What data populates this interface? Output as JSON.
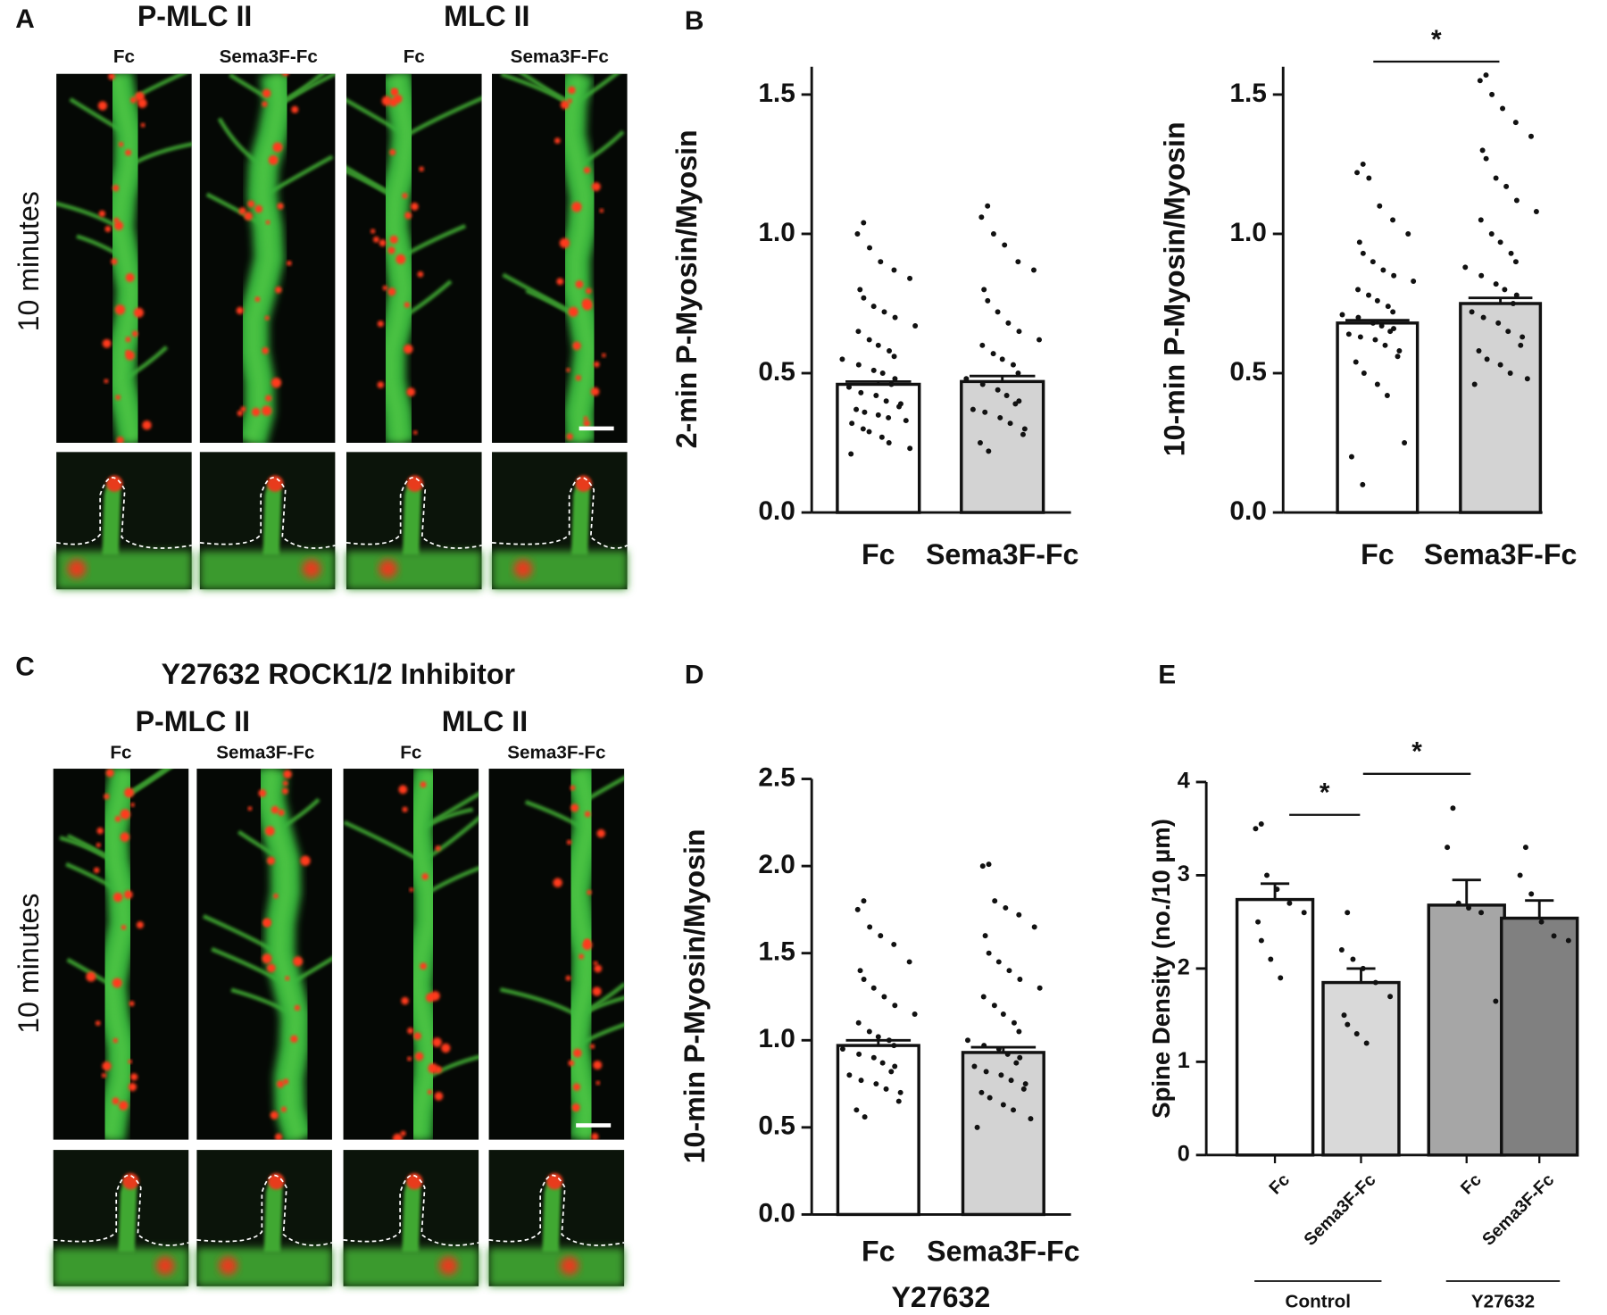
{
  "panel_labels": [
    "A",
    "B",
    "C",
    "D",
    "E"
  ],
  "micrographs": [
    {
      "channels": [
        "P-MLC II",
        "MLC II"
      ],
      "conditions": [
        "Fc",
        "Sema3F-Fc",
        "Fc",
        "Sema3F-Fc"
      ],
      "row_label": "10 minutes"
    },
    {
      "title": "Y27632 ROCK1/2 Inhibitor",
      "channels": [
        "P-MLC II",
        "MLC II"
      ],
      "conditions": [
        "Fc",
        "Sema3F-Fc",
        "Fc",
        "Sema3F-Fc"
      ],
      "row_label": "10 minutes"
    }
  ],
  "chart_data": [
    {
      "type": "bar",
      "ylabel": "2-min P-Myosin/Myosin",
      "categories": [
        "Fc",
        "Sema3F-Fc"
      ],
      "values": [
        0.46,
        0.47
      ],
      "errors": [
        0.01,
        0.02
      ],
      "colors": [
        "#ffffff",
        "#d3d3d3"
      ],
      "points": [
        [
          1.04,
          1.0,
          0.95,
          0.9,
          0.87,
          0.84,
          0.8,
          0.77,
          0.74,
          0.72,
          0.7,
          0.67,
          0.65,
          0.62,
          0.6,
          0.58,
          0.56,
          0.55,
          0.53,
          0.51,
          0.5,
          0.48,
          0.46,
          0.45,
          0.43,
          0.42,
          0.4,
          0.39,
          0.38,
          0.37,
          0.36,
          0.35,
          0.34,
          0.33,
          0.32,
          0.3,
          0.29,
          0.27,
          0.25,
          0.23,
          0.21
        ],
        [
          1.1,
          1.06,
          1.0,
          0.96,
          0.9,
          0.87,
          0.8,
          0.76,
          0.72,
          0.68,
          0.65,
          0.62,
          0.6,
          0.57,
          0.55,
          0.53,
          0.5,
          0.48,
          0.46,
          0.44,
          0.42,
          0.4,
          0.39,
          0.37,
          0.36,
          0.34,
          0.32,
          0.3,
          0.28,
          0.25,
          0.22
        ]
      ],
      "ylim": [
        0,
        1.6
      ],
      "yticks": [
        {
          "value": 0,
          "label": "0.0"
        },
        0.5,
        {
          "value": 1,
          "label": "1.0"
        },
        1.5
      ]
    },
    {
      "type": "bar",
      "ylabel": "10-min P-Myosin/Myosin",
      "categories": [
        "Fc",
        "Sema3F-Fc"
      ],
      "values": [
        0.68,
        0.75
      ],
      "errors": [
        0.01,
        0.02
      ],
      "colors": [
        "#ffffff",
        "#d3d3d3"
      ],
      "points": [
        [
          1.25,
          1.22,
          1.2,
          1.1,
          1.05,
          1.0,
          0.97,
          0.93,
          0.9,
          0.87,
          0.85,
          0.83,
          0.8,
          0.78,
          0.76,
          0.74,
          0.72,
          0.71,
          0.7,
          0.68,
          0.67,
          0.66,
          0.65,
          0.64,
          0.63,
          0.62,
          0.6,
          0.58,
          0.56,
          0.54,
          0.5,
          0.46,
          0.42,
          0.25,
          0.2,
          0.1
        ],
        [
          1.57,
          1.55,
          1.5,
          1.45,
          1.4,
          1.35,
          1.3,
          1.27,
          1.2,
          1.17,
          1.12,
          1.08,
          1.05,
          1.0,
          0.97,
          0.93,
          0.9,
          0.88,
          0.85,
          0.82,
          0.8,
          0.78,
          0.75,
          0.72,
          0.7,
          0.68,
          0.65,
          0.63,
          0.6,
          0.58,
          0.55,
          0.53,
          0.5,
          0.48,
          0.46
        ]
      ],
      "annotations": [
        "*"
      ],
      "ylim": [
        0,
        1.6
      ],
      "yticks": [
        {
          "value": 0,
          "label": "0.0"
        },
        0.5,
        {
          "value": 1,
          "label": "1.0"
        },
        1.5
      ]
    },
    {
      "type": "bar",
      "ylabel": "10-min P-Myosin/Myosin",
      "xlabel": "Y27632",
      "categories": [
        "Fc",
        "Sema3F-Fc"
      ],
      "values": [
        0.97,
        0.93
      ],
      "errors": [
        0.03,
        0.03
      ],
      "colors": [
        "#ffffff",
        "#d3d3d3"
      ],
      "points": [
        [
          1.8,
          1.75,
          1.65,
          1.6,
          1.55,
          1.45,
          1.4,
          1.35,
          1.3,
          1.25,
          1.2,
          1.15,
          1.1,
          1.05,
          1.02,
          1.0,
          0.97,
          0.95,
          0.92,
          0.9,
          0.87,
          0.85,
          0.82,
          0.8,
          0.77,
          0.75,
          0.72,
          0.7,
          0.65,
          0.6,
          0.56
        ],
        [
          2.01,
          2.0,
          1.8,
          1.76,
          1.72,
          1.65,
          1.6,
          1.5,
          1.45,
          1.4,
          1.35,
          1.3,
          1.25,
          1.2,
          1.15,
          1.1,
          1.05,
          1.0,
          0.97,
          0.95,
          0.92,
          0.9,
          0.87,
          0.85,
          0.82,
          0.8,
          0.77,
          0.75,
          0.72,
          0.7,
          0.67,
          0.63,
          0.6,
          0.55,
          0.5
        ]
      ],
      "ylim": [
        0,
        2.5
      ],
      "yticks": [
        {
          "value": 0,
          "label": "0.0"
        },
        0.5,
        {
          "value": 1,
          "label": "1.0"
        },
        1.5,
        {
          "value": 2,
          "label": "2.0"
        },
        2.5
      ]
    },
    {
      "type": "bar",
      "ylabel": "Spine Density (no./10 µm)",
      "categories": [
        "Fc",
        "Sema3F-Fc",
        "Fc",
        "Sema3F-Fc"
      ],
      "group_labels": [
        "Control",
        "Y27632"
      ],
      "values": [
        2.74,
        1.85,
        2.68,
        2.54
      ],
      "errors": [
        0.17,
        0.15,
        0.27,
        0.19
      ],
      "colors": [
        "#ffffff",
        "#d9d9d9",
        "#a6a6a6",
        "#808080"
      ],
      "points": [
        [
          3.55,
          3.5,
          3.0,
          2.85,
          2.7,
          2.6,
          2.5,
          2.3,
          2.1,
          1.9
        ],
        [
          2.6,
          2.2,
          2.1,
          2.0,
          1.85,
          1.7,
          1.5,
          1.4,
          1.3,
          1.2
        ],
        [
          3.72,
          3.3,
          2.7,
          2.65,
          2.6,
          1.65
        ],
        [
          3.3,
          3.0,
          2.8,
          2.5,
          2.35,
          2.3
        ]
      ],
      "annotations": [
        "*",
        "*"
      ],
      "ylim": [
        0,
        4
      ],
      "yticks": [
        0,
        1,
        2,
        3,
        4
      ]
    }
  ]
}
